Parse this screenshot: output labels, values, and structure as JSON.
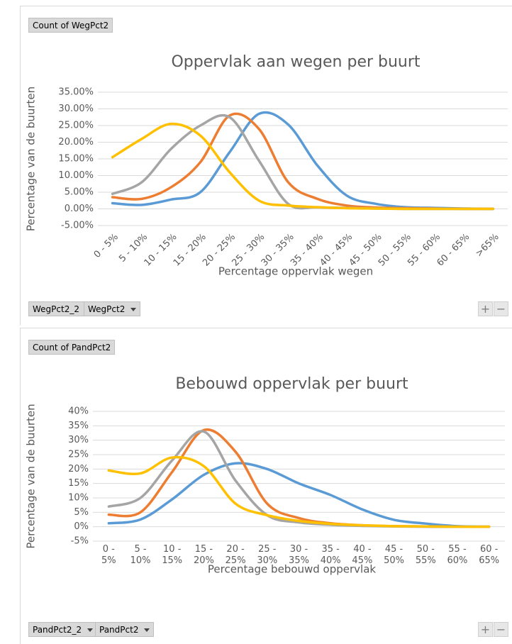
{
  "chart_data": [
    {
      "type": "line",
      "title": "Oppervlak aan wegen per buurt",
      "value_field": "Count of WegPct2",
      "axis_fields": [
        "WegPct2_2",
        "WegPct2"
      ],
      "xlabel": "Percentage oppervlak wegen",
      "ylabel": "Percentage van de buurten",
      "categories": [
        "0 - 5%",
        "5 - 10%",
        "10 - 15%",
        "15 - 20%",
        "20 - 25%",
        "25 - 30%",
        "30 - 35%",
        "35 - 40%",
        "40 - 45%",
        "45 - 50%",
        "50 - 55%",
        "55 - 60%",
        "60 - 65%",
        ">65%"
      ],
      "series": [
        {
          "color": "#5b9bd5",
          "values": [
            1.7,
            1.2,
            2.8,
            5,
            17,
            28.5,
            25.3,
            13,
            4,
            1.5,
            0.5,
            0.3,
            0.1,
            0
          ]
        },
        {
          "color": "#ed7d31",
          "values": [
            3.5,
            3.0,
            6.5,
            14,
            28,
            24,
            8,
            3,
            1,
            0.4,
            0.2,
            0.1,
            0,
            0
          ]
        },
        {
          "color": "#a5a5a5",
          "values": [
            4.5,
            8,
            18,
            25,
            27.5,
            14.5,
            1.5,
            0.5,
            0.3,
            0.1,
            0,
            0,
            0,
            0
          ]
        },
        {
          "color": "#ffc000",
          "values": [
            15.5,
            21,
            25.5,
            22,
            11,
            2.5,
            1,
            0.5,
            0.2,
            0.1,
            0,
            0,
            0,
            0
          ]
        }
      ],
      "ylim": [
        -5,
        35
      ],
      "yticks": [
        {
          "value": -5,
          "label": "-5.00%"
        },
        {
          "value": 0,
          "label": "0.00%"
        },
        {
          "value": 5,
          "label": "5.00%"
        },
        {
          "value": 10,
          "label": "10.00%"
        },
        {
          "value": 15,
          "label": "15.00%"
        },
        {
          "value": 20,
          "label": "20.00%"
        },
        {
          "value": 25,
          "label": "25.00%"
        },
        {
          "value": 30,
          "label": "30.00%"
        },
        {
          "value": 35,
          "label": "35.00%"
        }
      ],
      "grid": true,
      "smooth": true
    },
    {
      "type": "line",
      "title": "Bebouwd oppervlak  per buurt",
      "value_field": "Count of PandPct2",
      "axis_fields": [
        "PandPct2_2",
        "PandPct2"
      ],
      "xlabel": "Percentage bebouwd oppervlak",
      "ylabel": "Percentage van de buurten",
      "categories": [
        "0 - 5%",
        "5 - 10%",
        "10 - 15%",
        "15 - 20%",
        "20 - 25%",
        "25 - 30%",
        "30 - 35%",
        "35 - 40%",
        "40 - 45%",
        "45 - 50%",
        "50 - 55%",
        "55 - 60%",
        "60 - 65%"
      ],
      "series": [
        {
          "color": "#5b9bd5",
          "values": [
            1.2,
            2.5,
            9.5,
            18,
            22,
            20,
            15,
            11,
            6,
            2.4,
            1.1,
            0.2,
            0
          ]
        },
        {
          "color": "#ed7d31",
          "values": [
            4.2,
            5,
            19,
            33.5,
            26,
            8,
            3,
            1.2,
            0.5,
            0.2,
            0.1,
            0,
            0
          ]
        },
        {
          "color": "#a5a5a5",
          "values": [
            7,
            10,
            23,
            33,
            16,
            4,
            1.5,
            0.7,
            0.3,
            0.1,
            0,
            0,
            0
          ]
        },
        {
          "color": "#ffc000",
          "values": [
            19.5,
            18.5,
            24,
            21,
            8,
            4,
            2,
            1,
            0.5,
            0.2,
            0.1,
            0,
            0
          ]
        }
      ],
      "ylim": [
        -5,
        40
      ],
      "yticks": [
        {
          "value": -5,
          "label": "-5%"
        },
        {
          "value": 0,
          "label": "0%"
        },
        {
          "value": 5,
          "label": "5%"
        },
        {
          "value": 10,
          "label": "10%"
        },
        {
          "value": 15,
          "label": "15%"
        },
        {
          "value": 20,
          "label": "20%"
        },
        {
          "value": 25,
          "label": "25%"
        },
        {
          "value": 30,
          "label": "30%"
        },
        {
          "value": 35,
          "label": "35%"
        },
        {
          "value": 40,
          "label": "40%"
        }
      ],
      "grid": true,
      "smooth": true
    }
  ],
  "zoom_buttons": [
    "+",
    "−"
  ]
}
